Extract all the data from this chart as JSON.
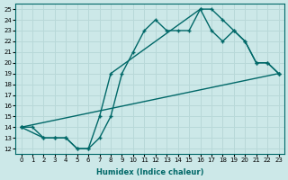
{
  "xlabel": "Humidex (Indice chaleur)",
  "bg_color": "#cce8e8",
  "line_color": "#006868",
  "grid_color": "#b8d8d8",
  "xlim": [
    -0.5,
    23.5
  ],
  "ylim": [
    11.5,
    25.5
  ],
  "xticks": [
    0,
    1,
    2,
    3,
    4,
    5,
    6,
    7,
    8,
    9,
    10,
    11,
    12,
    13,
    14,
    15,
    16,
    17,
    18,
    19,
    20,
    21,
    22,
    23
  ],
  "yticks": [
    12,
    13,
    14,
    15,
    16,
    17,
    18,
    19,
    20,
    21,
    22,
    23,
    24,
    25
  ],
  "line1_x": [
    0,
    1,
    2,
    3,
    4,
    5,
    6,
    7,
    8,
    9,
    10,
    11,
    12,
    13,
    14,
    15,
    16,
    17,
    18,
    19,
    20,
    21,
    22,
    23
  ],
  "line1_y": [
    14,
    14,
    13,
    13,
    13,
    12,
    12,
    13,
    15,
    19,
    21,
    23,
    24,
    23,
    23,
    23,
    25,
    25,
    24,
    23,
    22,
    20,
    20,
    19
  ],
  "line2_x": [
    0,
    2,
    3,
    4,
    5,
    6,
    7,
    8,
    16,
    17,
    18,
    19,
    20,
    21,
    22,
    23
  ],
  "line2_y": [
    14,
    13,
    13,
    13,
    12,
    12,
    15,
    19,
    25,
    23,
    22,
    23,
    22,
    20,
    20,
    19
  ],
  "line3_x": [
    0,
    23
  ],
  "line3_y": [
    14,
    19
  ],
  "marker_size": 3.5,
  "linewidth": 1.0
}
